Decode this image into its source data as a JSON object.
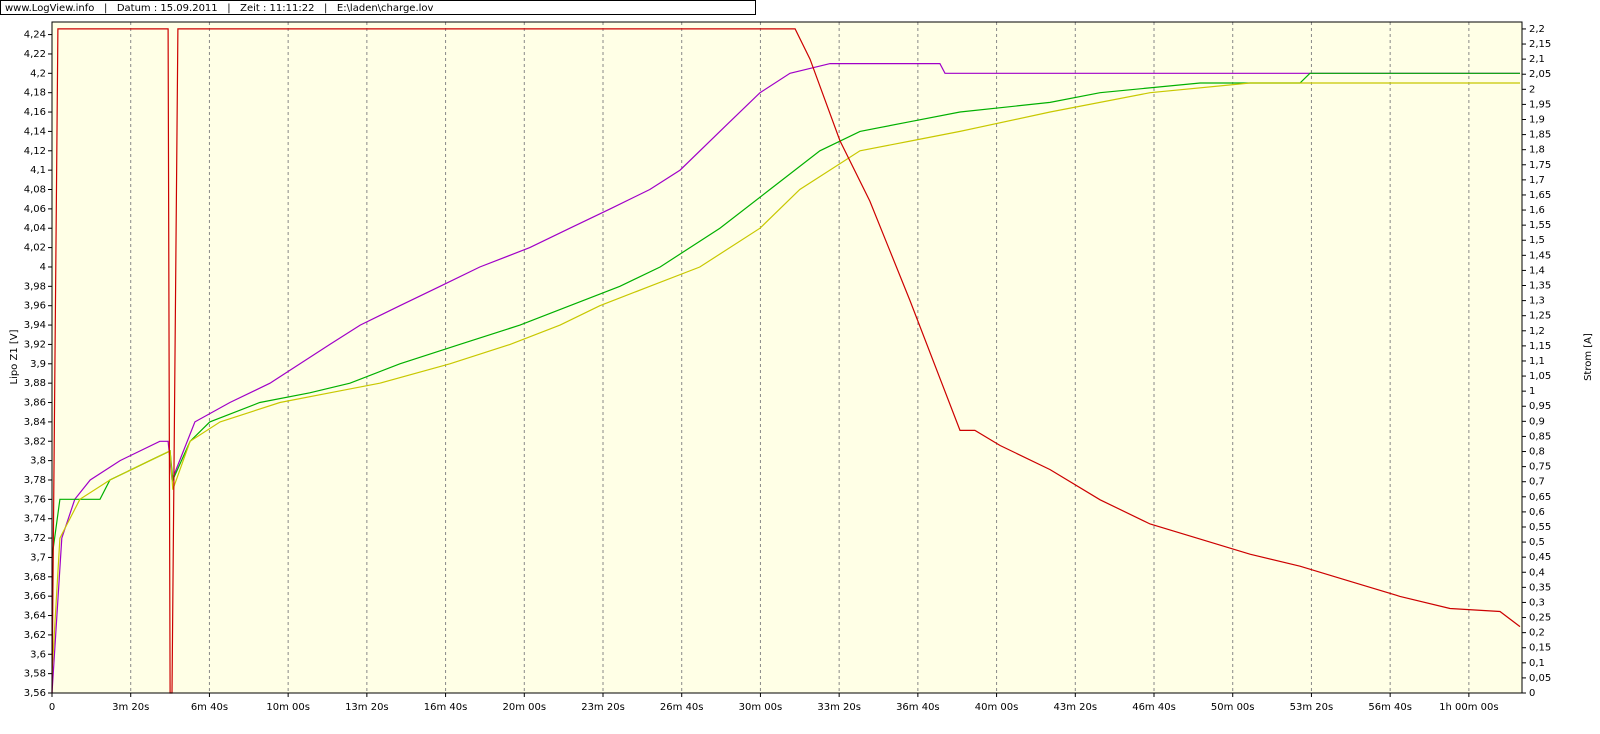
{
  "chart_data": {
    "type": "line",
    "title": "www.LogView.info   |   Datum : 15.09.2011   |   Zeit : 11:11:22   |   E:\\laden\\charge.lov",
    "ylabel": "Lipo Z1 [V]",
    "y2label": "Strom [A]",
    "xlim": [
      0,
      3735
    ],
    "ylim": [
      3.56,
      4.253
    ],
    "y2lim": [
      0,
      2.223
    ],
    "grid": true,
    "xticks": [
      0,
      {
        "value": 200,
        "label": "3m 20s"
      },
      {
        "value": 400,
        "label": "6m 40s"
      },
      {
        "value": 600,
        "label": "10m 00s"
      },
      {
        "value": 800,
        "label": "13m 20s"
      },
      {
        "value": 1000,
        "label": "16m 40s"
      },
      {
        "value": 1200,
        "label": "20m 00s"
      },
      {
        "value": 1400,
        "label": "23m 20s"
      },
      {
        "value": 1600,
        "label": "26m 40s"
      },
      {
        "value": 1800,
        "label": "30m 00s"
      },
      {
        "value": 2000,
        "label": "33m 20s"
      },
      {
        "value": 2200,
        "label": "36m 40s"
      },
      {
        "value": 2400,
        "label": "40m 00s"
      },
      {
        "value": 2600,
        "label": "43m 20s"
      },
      {
        "value": 2800,
        "label": "46m 40s"
      },
      {
        "value": 3000,
        "label": "50m 00s"
      },
      {
        "value": 3200,
        "label": "53m 20s"
      },
      {
        "value": 3400,
        "label": "56m 40s"
      },
      {
        "value": 3600,
        "label": "1h 00m 00s"
      }
    ],
    "yticks": [
      {
        "value": 3.56,
        "label": "3,56"
      },
      {
        "value": 3.58,
        "label": "3,58"
      },
      {
        "value": 3.6,
        "label": "3,6"
      },
      {
        "value": 3.62,
        "label": "3,62"
      },
      {
        "value": 3.64,
        "label": "3,64"
      },
      {
        "value": 3.66,
        "label": "3,66"
      },
      {
        "value": 3.68,
        "label": "3,68"
      },
      {
        "value": 3.7,
        "label": "3,7"
      },
      {
        "value": 3.72,
        "label": "3,72"
      },
      {
        "value": 3.74,
        "label": "3,74"
      },
      {
        "value": 3.76,
        "label": "3,76"
      },
      {
        "value": 3.78,
        "label": "3,78"
      },
      {
        "value": 3.8,
        "label": "3,8"
      },
      {
        "value": 3.82,
        "label": "3,82"
      },
      {
        "value": 3.84,
        "label": "3,84"
      },
      {
        "value": 3.86,
        "label": "3,86"
      },
      {
        "value": 3.88,
        "label": "3,88"
      },
      {
        "value": 3.9,
        "label": "3,9"
      },
      {
        "value": 3.92,
        "label": "3,92"
      },
      {
        "value": 3.94,
        "label": "3,94"
      },
      {
        "value": 3.96,
        "label": "3,96"
      },
      {
        "value": 3.98,
        "label": "3,98"
      },
      4,
      {
        "value": 4.02,
        "label": "4,02"
      },
      {
        "value": 4.04,
        "label": "4,04"
      },
      {
        "value": 4.06,
        "label": "4,06"
      },
      {
        "value": 4.08,
        "label": "4,08"
      },
      {
        "value": 4.1,
        "label": "4,1"
      },
      {
        "value": 4.12,
        "label": "4,12"
      },
      {
        "value": 4.14,
        "label": "4,14"
      },
      {
        "value": 4.16,
        "label": "4,16"
      },
      {
        "value": 4.18,
        "label": "4,18"
      },
      {
        "value": 4.2,
        "label": "4,2"
      },
      {
        "value": 4.22,
        "label": "4,22"
      },
      {
        "value": 4.24,
        "label": "4,24"
      }
    ],
    "y2ticks": [
      0,
      {
        "value": 0.05,
        "label": "0,05"
      },
      {
        "value": 0.1,
        "label": "0,1"
      },
      {
        "value": 0.15,
        "label": "0,15"
      },
      {
        "value": 0.2,
        "label": "0,2"
      },
      {
        "value": 0.25,
        "label": "0,25"
      },
      {
        "value": 0.3,
        "label": "0,3"
      },
      {
        "value": 0.35,
        "label": "0,35"
      },
      {
        "value": 0.4,
        "label": "0,4"
      },
      {
        "value": 0.45,
        "label": "0,45"
      },
      {
        "value": 0.5,
        "label": "0,5"
      },
      {
        "value": 0.55,
        "label": "0,55"
      },
      {
        "value": 0.6,
        "label": "0,6"
      },
      {
        "value": 0.65,
        "label": "0,65"
      },
      {
        "value": 0.7,
        "label": "0,7"
      },
      {
        "value": 0.75,
        "label": "0,75"
      },
      {
        "value": 0.8,
        "label": "0,8"
      },
      {
        "value": 0.85,
        "label": "0,85"
      },
      {
        "value": 0.9,
        "label": "0,9"
      },
      {
        "value": 0.95,
        "label": "0,95"
      },
      1,
      {
        "value": 1.05,
        "label": "1,05"
      },
      {
        "value": 1.1,
        "label": "1,1"
      },
      {
        "value": 1.15,
        "label": "1,15"
      },
      {
        "value": 1.2,
        "label": "1,2"
      },
      {
        "value": 1.25,
        "label": "1,25"
      },
      {
        "value": 1.3,
        "label": "1,3"
      },
      {
        "value": 1.35,
        "label": "1,35"
      },
      {
        "value": 1.4,
        "label": "1,4"
      },
      {
        "value": 1.45,
        "label": "1,45"
      },
      {
        "value": 1.5,
        "label": "1,5"
      },
      {
        "value": 1.55,
        "label": "1,55"
      },
      {
        "value": 1.6,
        "label": "1,6"
      },
      {
        "value": 1.65,
        "label": "1,65"
      },
      {
        "value": 1.7,
        "label": "1,7"
      },
      {
        "value": 1.75,
        "label": "1,75"
      },
      {
        "value": 1.8,
        "label": "1,8"
      },
      {
        "value": 1.85,
        "label": "1,85"
      },
      {
        "value": 1.9,
        "label": "1,9"
      },
      {
        "value": 1.95,
        "label": "1,95"
      },
      2,
      {
        "value": 2.05,
        "label": "2,05"
      },
      {
        "value": 2.1,
        "label": "2,1"
      },
      {
        "value": 2.15,
        "label": "2,15"
      },
      {
        "value": 2.2,
        "label": "2,2"
      }
    ],
    "series": [
      {
        "color": "#a000c8",
        "x": [
          0,
          25,
          58,
          97,
          173,
          274,
          295,
          305,
          363,
          452,
          554,
          630,
          706,
          783,
          884,
          986,
          1087,
          1214,
          1316,
          1418,
          1519,
          1596,
          1697,
          1799,
          1875,
          1977,
          2256,
          2269,
          3730
        ],
        "values": [
          3.56,
          3.72,
          3.76,
          3.78,
          3.8,
          3.82,
          3.82,
          3.78,
          3.84,
          3.86,
          3.88,
          3.9,
          3.92,
          3.94,
          3.96,
          3.98,
          4.0,
          4.02,
          4.04,
          4.06,
          4.08,
          4.1,
          4.14,
          4.18,
          4.2,
          4.21,
          4.21,
          4.2,
          4.2
        ]
      },
      {
        "color": "#00b000",
        "x": [
          0,
          20,
          122,
          147,
          249,
          300,
          307,
          351,
          401,
          528,
          655,
          757,
          884,
          1036,
          1189,
          1316,
          1443,
          1545,
          1697,
          1824,
          1951,
          2053,
          2180,
          2307,
          2536,
          2663,
          2917,
          3171,
          3196,
          3730
        ],
        "values": [
          3.7,
          3.76,
          3.76,
          3.78,
          3.8,
          3.81,
          3.78,
          3.82,
          3.84,
          3.86,
          3.87,
          3.88,
          3.9,
          3.92,
          3.94,
          3.96,
          3.98,
          4.0,
          4.04,
          4.08,
          4.12,
          4.14,
          4.15,
          4.16,
          4.17,
          4.18,
          4.19,
          4.19,
          4.2,
          4.2
        ]
      },
      {
        "color": "#c8c800",
        "x": [
          0,
          20,
          71,
          147,
          249,
          300,
          307,
          351,
          427,
          579,
          706,
          833,
          1011,
          1164,
          1291,
          1392,
          1519,
          1646,
          1799,
          1900,
          2053,
          2180,
          2307,
          2536,
          2790,
          3044,
          3730
        ],
        "values": [
          3.58,
          3.72,
          3.76,
          3.78,
          3.8,
          3.81,
          3.77,
          3.82,
          3.84,
          3.86,
          3.87,
          3.88,
          3.9,
          3.92,
          3.94,
          3.96,
          3.98,
          4.0,
          4.04,
          4.08,
          4.12,
          4.13,
          4.14,
          4.16,
          4.18,
          4.19,
          4.19
        ]
      },
      {
        "color": "#cc0000",
        "axis": "y2",
        "x": [
          0,
          15,
          295,
          300,
          305,
          320,
          1888,
          1926,
          2002,
          2078,
          2180,
          2307,
          2345,
          2409,
          2536,
          2663,
          2790,
          2917,
          3044,
          3171,
          3298,
          3425,
          3552,
          3679,
          3730
        ],
        "values": [
          0,
          2.2,
          2.2,
          0,
          0,
          2.2,
          2.2,
          2.1,
          1.83,
          1.63,
          1.3,
          0.87,
          0.87,
          0.82,
          0.74,
          0.64,
          0.56,
          0.51,
          0.46,
          0.42,
          0.37,
          0.32,
          0.28,
          0.27,
          0.22
        ]
      }
    ]
  }
}
